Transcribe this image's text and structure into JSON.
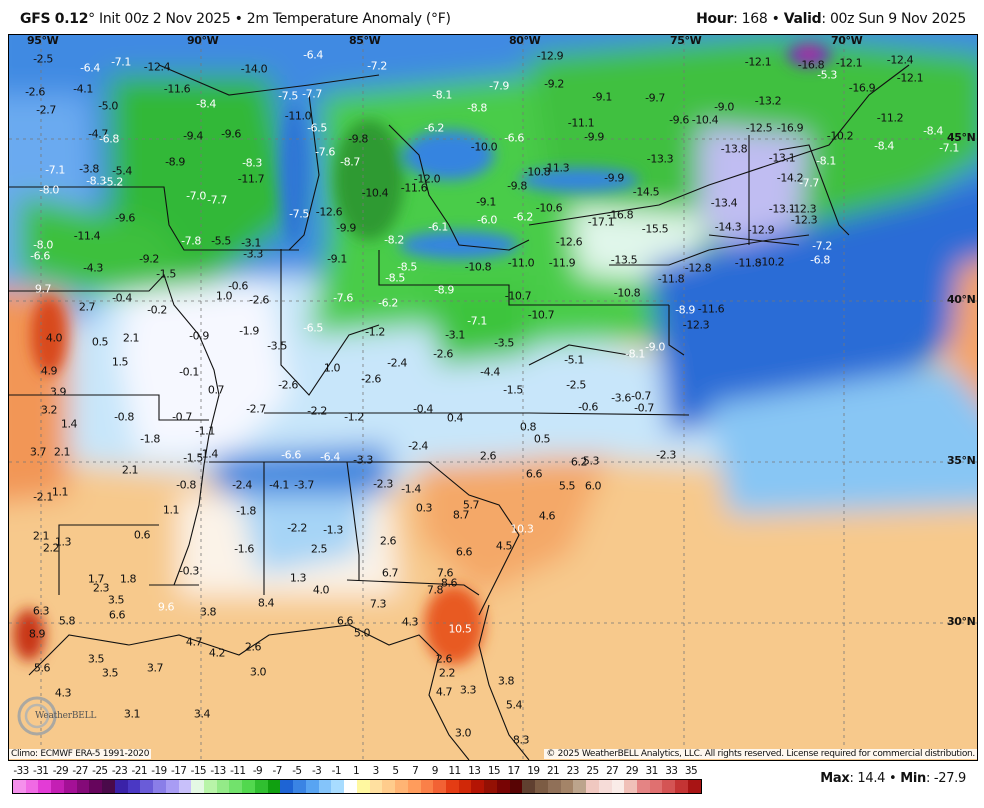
{
  "header": {
    "model": "GFS 0.12",
    "deg": "°",
    "init": " Init 00z 2 Nov 2025 • 2m Temperature Anomaly (°F)",
    "hour_label": "Hour",
    "hour_value": ": 168 • ",
    "valid_label": "Valid",
    "valid_value": ": 00z Sun 9 Nov 2025"
  },
  "graticule": {
    "lon": [
      "95°W",
      "90°W",
      "85°W",
      "80°W",
      "75°W",
      "70°W"
    ],
    "lat": [
      "45°N",
      "40°N",
      "35°N",
      "30°N"
    ]
  },
  "footer": {
    "climo": "Climo: ECMWF ERA-5 1991-2020",
    "copyright": "© 2025 WeatherBELL Analytics, LLC. All rights reserved. License required for commercial distribution.",
    "logo": "WeatherBELL"
  },
  "stats": {
    "max_label": "Max",
    "max_value": ": 14.4 • ",
    "min_label": "Min",
    "min_value": ": -27.9"
  },
  "colorbar": {
    "labels": [
      "-33",
      "-31",
      "-29",
      "-27",
      "-25",
      "-23",
      "-21",
      "-19",
      "-17",
      "-15",
      "-13",
      "-11",
      "-9",
      "-7",
      "-5",
      "-3",
      "-1",
      "1",
      "3",
      "5",
      "7",
      "9",
      "11",
      "13",
      "15",
      "17",
      "19",
      "21",
      "23",
      "25",
      "27",
      "29",
      "31",
      "33",
      "35"
    ],
    "colors": [
      "#f590ec",
      "#f06ae4",
      "#e33cd6",
      "#c41fb4",
      "#a41096",
      "#840a78",
      "#66055c",
      "#4a0a4a",
      "#3a22a8",
      "#4a38c4",
      "#6a5cd8",
      "#8a7ee8",
      "#a89cf4",
      "#c8c0fa",
      "#e4f8e4",
      "#b8f4a8",
      "#94ea88",
      "#72e26c",
      "#52d84e",
      "#30bf30",
      "#10a010",
      "#1e64d4",
      "#3a84e4",
      "#58a4f2",
      "#84c4fa",
      "#a8dcff",
      "#ffffff",
      "#fff8a0",
      "#ffe0a0",
      "#ffcc8c",
      "#ffb474",
      "#ff9c5c",
      "#fa8048",
      "#f26234",
      "#e43c14",
      "#d02808",
      "#b41404",
      "#941004",
      "#780404",
      "#580404",
      "#604030",
      "#7c5c44",
      "#907058",
      "#a48468",
      "#bca48c",
      "#f0c8c0",
      "#f6dcd8",
      "#faece8",
      "#f0c0b8",
      "#e48484",
      "#e07070",
      "#d45454",
      "#c43434",
      "#a81414"
    ]
  },
  "values": [
    "-2.5",
    "-6.4",
    "-7.1",
    "-12.4",
    "-14.0",
    "-6.4",
    "-7.2",
    "-12.9",
    "-12.1",
    "-16.8",
    "-5.3",
    "-12.1",
    "-12.4",
    "-12.1",
    "-16.9",
    "-2.6",
    "-4.1",
    "-11.6",
    "-7.5",
    "-7.7",
    "-8.1",
    "-7.9",
    "-9.2",
    "-9.1",
    "-9.7",
    "-13.2",
    "-2.7",
    "-5.0",
    "-8.4",
    "-11.0",
    "-8.8",
    "-9.0",
    "-9.6",
    "-10.4",
    "-12.5",
    "-16.9",
    "-11.2",
    "-4.7",
    "-6.8",
    "-9.4",
    "-9.6",
    "-6.5",
    "-9.8",
    "-6.2",
    "-6.6",
    "-11.1",
    "-9.9",
    "-10.2",
    "-8.4",
    "-8.4",
    "-7.1",
    "-7.6",
    "-8.7",
    "-10.0",
    "-13.8",
    "-13.1",
    "-8.1",
    "-8.9",
    "-8.3",
    "-11.7",
    "-7.1",
    "-3.8",
    "-5.4",
    "-8.3",
    "-5.2",
    "-12.0",
    "-11.6",
    "-10.8",
    "-11.3",
    "-9.9",
    "-13.3",
    "-14.5",
    "-14.2",
    "-7.7",
    "-8.0",
    "-7.0",
    "-7.7",
    "-10.4",
    "-9.8",
    "-9.1",
    "-13.4",
    "-13.1",
    "-12.3",
    "-12.3",
    "-10.6",
    "-6.0",
    "-6.2",
    "-17.1",
    "-16.8",
    "-14.3",
    "-12.9",
    "-15.5",
    "-7.5",
    "-12.6",
    "-9.6",
    "-9.9",
    "-6.1",
    "-11.4",
    "-7.8",
    "-5.5",
    "-3.1",
    "-3.3",
    "-8.2",
    "-12.6",
    "-7.2",
    "-6.8",
    "-8.0",
    "-6.6",
    "-9.2",
    "-4.3",
    "-1.5",
    "-9.1",
    "-8.5",
    "-8.5",
    "-11.0",
    "-11.9",
    "-13.5",
    "-11.8",
    "-12.8",
    "-11.8",
    "-10.2",
    "-10.8",
    "-8.9",
    "-7.6",
    "-6.2",
    "-10.8",
    "-10.7",
    "-10.7",
    "-8.9",
    "-11.6",
    "-12.3",
    "-7.1",
    "-9.0",
    "-8.1",
    "-6.5",
    "9.7",
    "2.7",
    "-0.4",
    "-0.2",
    "1.0",
    "-0.6",
    "-2.6",
    "4.0",
    "0.5",
    "2.1",
    "-0.9",
    "-1.9",
    "-3.5",
    "-1.2",
    "-3.1",
    "-3.5",
    "-2.6",
    "1.5",
    "1.0",
    "-2.4",
    "-0.1",
    "4.9",
    "-2.6",
    "-2.6",
    "-4.4",
    "-5.1",
    "3.9",
    "0.7",
    "-1.5",
    "-2.5",
    "-3.6",
    "-0.7",
    "-0.7",
    "-0.6",
    "3.2",
    "1.4",
    "-0.8",
    "-0.7",
    "-2.7",
    "-2.2",
    "-1.2",
    "-0.4",
    "0.4",
    "0.8",
    "0.5",
    "-1.8",
    "-1.1",
    "-2.4",
    "3.7",
    "2.1",
    "-1.5",
    "-1.4",
    "-6.6",
    "-6.4",
    "-3.3",
    "2.6",
    "6.2",
    "5.3",
    "-2.3",
    "2.1",
    "-0.8",
    "-2.4",
    "-4.1",
    "-3.7",
    "-2.3",
    "-1.4",
    "6.6",
    "5.5",
    "6.0",
    "-2.1",
    "1.1",
    "0.3",
    "5.7",
    "8.7",
    "4.6",
    "1.1",
    "-1.8",
    "-2.2",
    "-1.3",
    "10.3",
    "0.6",
    "2.1",
    "2.2",
    "1.3",
    "-1.6",
    "2.5",
    "2.6",
    "4.5",
    "6.6",
    "-0.3",
    "6.7",
    "7.6",
    "8.6",
    "7.8",
    "1.7",
    "1.8",
    "2.3",
    "1.3",
    "4.0",
    "3.5",
    "9.6",
    "3.8",
    "8.4",
    "7.3",
    "6.3",
    "6.6",
    "5.8",
    "6.6",
    "5.0",
    "4.3",
    "10.5",
    "8.9",
    "4.7",
    "4.2",
    "2.6",
    "2.6",
    "5.6",
    "3.5",
    "3.5",
    "3.7",
    "3.0",
    "2.2",
    "3.3",
    "3.8",
    "4.7",
    "4.3",
    "5.4",
    "3.1",
    "3.4",
    "3.0",
    "8.3"
  ]
}
